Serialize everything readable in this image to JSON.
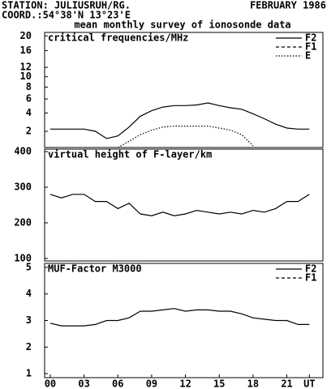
{
  "header": {
    "station": "STATION: JULIUSRUH/RG.",
    "date": "FEBRUARY 1986",
    "coord": "COORD.:54°38'N 13°23'E",
    "subtitle": "mean monthly survey of ionosonde data"
  },
  "chart_data": [
    {
      "type": "line",
      "title": "critical frequencies/MHz",
      "scale": "sqrt",
      "legend": "upper right",
      "x": [
        0,
        1,
        2,
        3,
        4,
        5,
        6,
        7,
        8,
        9,
        10,
        11,
        12,
        13,
        14,
        15,
        16,
        17,
        18,
        19,
        20,
        21,
        22,
        23
      ],
      "ylim": [
        0.8,
        21
      ],
      "yticks": [
        2,
        4,
        6,
        8,
        10,
        12,
        16,
        20
      ],
      "series": [
        {
          "name": "F2",
          "color": "#000000",
          "dash": "solid",
          "values": [
            2.2,
            2.2,
            2.2,
            2.2,
            2.0,
            1.4,
            1.6,
            2.4,
            3.6,
            4.3,
            4.8,
            5.0,
            5.0,
            5.1,
            5.4,
            5.0,
            4.7,
            4.5,
            3.9,
            3.3,
            2.7,
            2.3,
            2.2,
            2.2
          ]
        },
        {
          "name": "F1",
          "color": "#000000",
          "dash": "dashed",
          "values": [
            null,
            null,
            null,
            null,
            null,
            null,
            null,
            null,
            null,
            null,
            null,
            null,
            null,
            null,
            null,
            null,
            null,
            null,
            null,
            null,
            null,
            null,
            null,
            null
          ]
        },
        {
          "name": "E",
          "color": "#000000",
          "dash": "dotted",
          "values": [
            null,
            null,
            null,
            null,
            null,
            null,
            0.8,
            1.2,
            1.7,
            2.1,
            2.4,
            2.5,
            2.5,
            2.5,
            2.5,
            2.3,
            2.1,
            1.7,
            0.9,
            null,
            null,
            null,
            null,
            null
          ]
        }
      ]
    },
    {
      "type": "line",
      "title": "virtual height of F-layer/km",
      "x": [
        0,
        1,
        2,
        3,
        4,
        5,
        6,
        7,
        8,
        9,
        10,
        11,
        12,
        13,
        14,
        15,
        16,
        17,
        18,
        19,
        20,
        21,
        22,
        23
      ],
      "ylim": [
        93,
        407
      ],
      "yticks": [
        100,
        200,
        300,
        400
      ],
      "series": [
        {
          "color": "#000000",
          "dash": "solid",
          "values": [
            280,
            270,
            280,
            280,
            260,
            260,
            240,
            255,
            225,
            220,
            230,
            220,
            225,
            235,
            230,
            225,
            230,
            225,
            235,
            230,
            240,
            260,
            260,
            280
          ]
        }
      ]
    },
    {
      "type": "line",
      "title": "MUF-Factor M3000",
      "legend": "upper right",
      "x": [
        0,
        1,
        2,
        3,
        4,
        5,
        6,
        7,
        8,
        9,
        10,
        11,
        12,
        13,
        14,
        15,
        16,
        17,
        18,
        19,
        20,
        21,
        22,
        23
      ],
      "xlim": [
        -0.5,
        24.2
      ],
      "xticks": [
        {
          "value": 0,
          "label": "00"
        },
        {
          "value": 3,
          "label": "03"
        },
        {
          "value": 6,
          "label": "06"
        },
        {
          "value": 9,
          "label": "09"
        },
        12,
        15,
        18,
        21,
        {
          "value": 23,
          "label": "UT"
        }
      ],
      "ylim": [
        0.85,
        5.15
      ],
      "yticks": [
        1,
        2,
        3,
        4,
        5
      ],
      "series": [
        {
          "name": "F2",
          "color": "#000000",
          "dash": "solid",
          "values": [
            2.9,
            2.8,
            2.8,
            2.8,
            2.85,
            3.0,
            3.0,
            3.1,
            3.35,
            3.35,
            3.4,
            3.45,
            3.35,
            3.4,
            3.4,
            3.35,
            3.35,
            3.25,
            3.1,
            3.05,
            3.0,
            3.0,
            2.85,
            2.85
          ]
        },
        {
          "name": "F1",
          "color": "#000000",
          "dash": "dashed",
          "values": [
            null,
            null,
            null,
            null,
            null,
            null,
            null,
            null,
            null,
            null,
            null,
            null,
            null,
            null,
            null,
            null,
            null,
            null,
            null,
            null,
            null,
            null,
            null,
            null
          ]
        }
      ]
    }
  ]
}
